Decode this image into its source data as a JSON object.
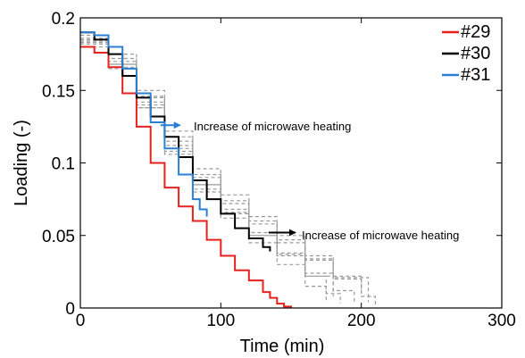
{
  "chart_data": {
    "type": "line",
    "xlabel": "Time (min)",
    "ylabel": "Loading (-)",
    "xlim": [
      0,
      300
    ],
    "ylim": [
      0,
      0.2
    ],
    "xticks": [
      "0",
      "100",
      "200",
      "300"
    ],
    "yticks": [
      "0",
      "0.05",
      "0.1",
      "0.15",
      "0.2"
    ],
    "x_tick_values": [
      0,
      100,
      200,
      300
    ],
    "y_tick_values": [
      0,
      0.05,
      0.1,
      0.15,
      0.2
    ],
    "grid": false,
    "legend_position": "top-right",
    "series": [
      {
        "name": "#29",
        "color": "#e8201e",
        "x": [
          0,
          10,
          20,
          30,
          40,
          50,
          60,
          70,
          80,
          90,
          100,
          110,
          120,
          130,
          135,
          140,
          145,
          150
        ],
        "y": [
          0.18,
          0.176,
          0.166,
          0.148,
          0.125,
          0.1,
          0.083,
          0.07,
          0.06,
          0.047,
          0.036,
          0.026,
          0.019,
          0.011,
          0.007,
          0.003,
          0.001,
          0.0
        ]
      },
      {
        "name": "#30",
        "color": "#000000",
        "x": [
          0,
          10,
          20,
          30,
          40,
          50,
          60,
          70,
          80,
          90,
          100,
          110,
          120,
          130,
          135
        ],
        "y": [
          0.19,
          0.185,
          0.175,
          0.16,
          0.145,
          0.132,
          0.118,
          0.104,
          0.088,
          0.075,
          0.065,
          0.055,
          0.048,
          0.042,
          0.039
        ]
      },
      {
        "name": "#31",
        "color": "#2a7fd4",
        "x": [
          0,
          10,
          20,
          30,
          40,
          50,
          60,
          70,
          80,
          85,
          90
        ],
        "y": [
          0.19,
          0.188,
          0.18,
          0.165,
          0.148,
          0.128,
          0.11,
          0.092,
          0.075,
          0.068,
          0.063
        ]
      },
      {
        "color": "#9a9a9a",
        "style": "dashed",
        "x": [
          0,
          20,
          40,
          60,
          80,
          100,
          120,
          140,
          160,
          180,
          200,
          210
        ],
        "y": [
          0.185,
          0.172,
          0.145,
          0.115,
          0.09,
          0.072,
          0.058,
          0.045,
          0.033,
          0.02,
          0.008,
          0.002
        ]
      },
      {
        "color": "#9a9a9a",
        "style": "dashed",
        "x": [
          0,
          20,
          40,
          60,
          80,
          100,
          120,
          140,
          160,
          180,
          195
        ],
        "y": [
          0.18,
          0.165,
          0.138,
          0.108,
          0.082,
          0.065,
          0.05,
          0.037,
          0.024,
          0.012,
          0.003
        ]
      },
      {
        "color": "#9a9a9a",
        "style": "dashed",
        "x": [
          0,
          20,
          40,
          60,
          80,
          100,
          120,
          140,
          160,
          175,
          185
        ],
        "y": [
          0.182,
          0.168,
          0.142,
          0.112,
          0.085,
          0.066,
          0.05,
          0.036,
          0.022,
          0.01,
          0.003
        ]
      },
      {
        "color": "#9a9a9a",
        "style": "dashed",
        "x": [
          0,
          20,
          40,
          60,
          80,
          100,
          120,
          140,
          160,
          180,
          200
        ],
        "y": [
          0.188,
          0.175,
          0.15,
          0.122,
          0.096,
          0.078,
          0.063,
          0.05,
          0.036,
          0.022,
          0.01
        ]
      },
      {
        "color": "#9a9a9a",
        "style": "dashed",
        "x": [
          0,
          20,
          40,
          60,
          80,
          100,
          120,
          140,
          160,
          175
        ],
        "y": [
          0.183,
          0.166,
          0.138,
          0.106,
          0.08,
          0.062,
          0.045,
          0.03,
          0.015,
          0.005
        ]
      },
      {
        "color": "#9a9a9a",
        "style": "dashed",
        "x": [
          0,
          20,
          40,
          60,
          80,
          100,
          120,
          140,
          160,
          180,
          205
        ],
        "y": [
          0.186,
          0.17,
          0.146,
          0.118,
          0.092,
          0.074,
          0.06,
          0.047,
          0.034,
          0.021,
          0.004
        ]
      },
      {
        "color": "#9a9a9a",
        "style": "dashed",
        "x": [
          0,
          20,
          40,
          60,
          80,
          100,
          120,
          140,
          160,
          180
        ],
        "y": [
          0.184,
          0.168,
          0.14,
          0.11,
          0.085,
          0.068,
          0.052,
          0.038,
          0.022,
          0.008
        ]
      }
    ],
    "annotations": [
      {
        "text": "Increase of microwave heating",
        "arrow_color": "#2a7fd4",
        "x": 57,
        "y": 0.126
      },
      {
        "text": "Increase of microwave heating",
        "arrow_color": "#000000",
        "x": 134,
        "y": 0.052
      }
    ]
  }
}
